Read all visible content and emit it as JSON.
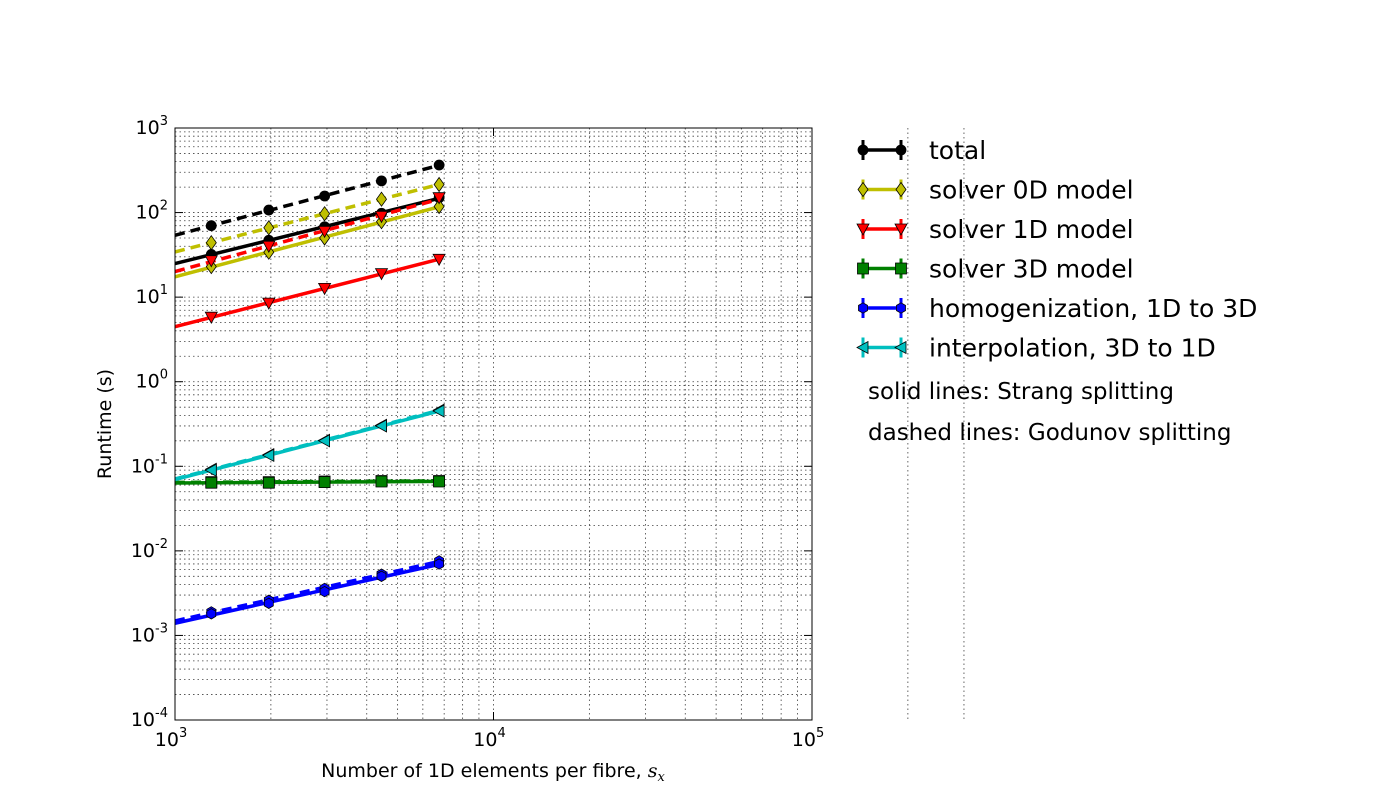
{
  "chart_data": {
    "type": "line",
    "xlabel": "Number of 1D elements per fibre, ",
    "xlabel_math": "s",
    "xlabel_math_sub": "x",
    "ylabel": "Runtime (s)",
    "xscale": "log",
    "yscale": "log",
    "xlim": [
      1000,
      300000
    ],
    "ylim": [
      0.0001,
      1000
    ],
    "grid": true,
    "legend_position": "outside-right",
    "x_ticks": [
      {
        "base": "10",
        "exp": "3",
        "value": 1000
      },
      {
        "base": "10",
        "exp": "4",
        "value": 10000
      },
      {
        "base": "10",
        "exp": "5",
        "value": 100000
      }
    ],
    "y_ticks": [
      {
        "base": "10",
        "exp": "3",
        "value": 1000
      },
      {
        "base": "10",
        "exp": "2",
        "value": 100
      },
      {
        "base": "10",
        "exp": "1",
        "value": 10
      },
      {
        "base": "10",
        "exp": "0",
        "value": 1
      },
      {
        "base": "10",
        "exp": "-1",
        "value": 0.1
      },
      {
        "base": "10",
        "exp": "-2",
        "value": 0.01
      },
      {
        "base": "10",
        "exp": "-3",
        "value": 0.001
      },
      {
        "base": "10",
        "exp": "-4",
        "value": 0.0001
      }
    ],
    "x": [
      1300,
      1970,
      2950,
      4450,
      6750
    ],
    "series": [
      {
        "name": "total",
        "color": "#000000",
        "marker": "circle",
        "strang": [
          32,
          47,
          68,
          98,
          150
        ],
        "godunov": [
          70,
          107,
          157,
          237,
          365
        ]
      },
      {
        "name": "solver 0D model",
        "color": "#bfbf00",
        "marker": "diamond",
        "strang": [
          23,
          34,
          50,
          78,
          118
        ],
        "godunov": [
          44,
          66,
          97,
          144,
          215
        ]
      },
      {
        "name": "solver 1D model",
        "color": "#ff0000",
        "marker": "triangle-down",
        "strang": [
          5.8,
          8.5,
          12.7,
          19,
          28
        ],
        "godunov": [
          27,
          40,
          60,
          90,
          150
        ]
      },
      {
        "name": "solver 3D model",
        "color": "#008000",
        "marker": "square",
        "strang": [
          0.064,
          0.064,
          0.065,
          0.066,
          0.066
        ],
        "godunov": [
          0.065,
          0.065,
          0.066,
          0.067,
          0.067
        ]
      },
      {
        "name": "homogenization, 1D to 3D",
        "color": "#0000ff",
        "marker": "hexagon",
        "strang": [
          0.0018,
          0.0024,
          0.0033,
          0.005,
          0.007
        ],
        "godunov": [
          0.0019,
          0.0026,
          0.0036,
          0.0053,
          0.0076
        ]
      },
      {
        "name": "interpolation, 3D to 1D",
        "color": "#00bfbf",
        "marker": "triangle-left",
        "strang": [
          0.09,
          0.135,
          0.2,
          0.3,
          0.45
        ],
        "godunov": [
          0.092,
          0.137,
          0.203,
          0.305,
          0.46
        ]
      }
    ],
    "notes": [
      "solid lines: Strang splitting",
      "dashed lines: Godunov splitting"
    ]
  }
}
